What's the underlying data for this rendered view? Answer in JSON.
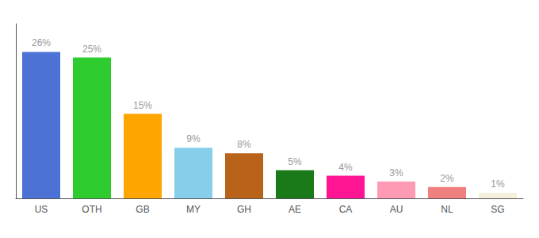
{
  "chart_data": {
    "type": "bar",
    "categories": [
      "US",
      "OTH",
      "GB",
      "MY",
      "GH",
      "AE",
      "CA",
      "AU",
      "NL",
      "SG"
    ],
    "values": [
      26,
      25,
      15,
      9,
      8,
      5,
      4,
      3,
      2,
      1
    ],
    "value_labels": [
      "26%",
      "25%",
      "15%",
      "9%",
      "8%",
      "5%",
      "4%",
      "3%",
      "2%",
      "1%"
    ],
    "colors": [
      "#4d72d6",
      "#2ecc2e",
      "#ffa500",
      "#87ceeb",
      "#b8621a",
      "#1a7a1a",
      "#ff1493",
      "#ff9ab5",
      "#f08080",
      "#f5f0dc"
    ],
    "ylim": [
      0,
      31
    ],
    "data_labels": true,
    "tick_labels": "x",
    "grid": false
  }
}
